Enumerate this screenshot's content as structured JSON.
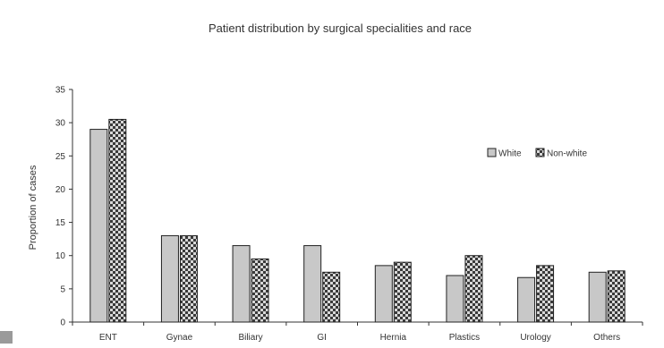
{
  "chart_data": {
    "type": "bar",
    "title": "Patient distribution by surgical specialities and race",
    "xlabel": "",
    "ylabel": "Proportion of cases",
    "ylim": [
      0,
      35
    ],
    "yticks": [
      0,
      5,
      10,
      15,
      20,
      25,
      30,
      35
    ],
    "categories": [
      "ENT",
      "Gynae",
      "Biliary",
      "GI",
      "Hernia",
      "Plastics",
      "Urology",
      "Others"
    ],
    "series": [
      {
        "name": "White",
        "values": [
          29,
          13,
          11.5,
          11.5,
          8.5,
          7,
          6.7,
          7.5
        ],
        "color": "#c8c8c8"
      },
      {
        "name": "Non-white",
        "values": [
          30.5,
          13,
          9.5,
          7.5,
          9,
          10,
          8.5,
          7.7
        ],
        "color": "#555555"
      }
    ],
    "legend_position": "right",
    "grid": false
  }
}
